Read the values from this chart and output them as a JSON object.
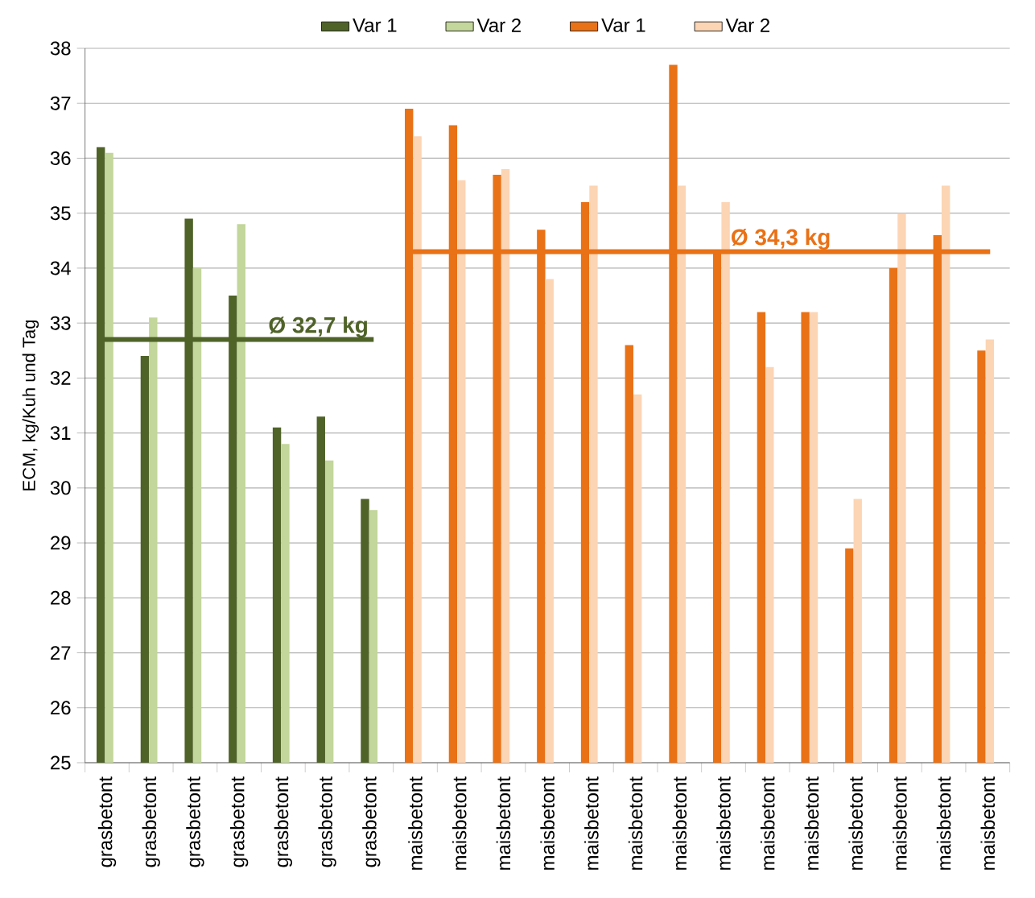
{
  "chart_data": {
    "type": "bar",
    "ylabel": "ECM, kg/Kuh und Tag",
    "categories": [
      "grasbetont",
      "grasbetont",
      "grasbetont",
      "grasbetont",
      "grasbetont",
      "grasbetont",
      "grasbetont",
      "maisbetont",
      "maisbetont",
      "maisbetont",
      "maisbetont",
      "maisbetont",
      "maisbetont",
      "maisbetont",
      "maisbetont",
      "maisbetont",
      "maisbetont",
      "maisbetont",
      "maisbetont",
      "maisbetont",
      "maisbetont"
    ],
    "series": [
      {
        "name": "Var 1",
        "color": "#4f6228",
        "values": [
          36.2,
          32.4,
          34.9,
          33.5,
          31.1,
          31.3,
          29.8,
          null,
          null,
          null,
          null,
          null,
          null,
          null,
          null,
          null,
          null,
          null,
          null,
          null,
          null
        ]
      },
      {
        "name": "Var 2",
        "color": "#c3d69b",
        "values": [
          36.1,
          33.1,
          34.0,
          34.8,
          30.8,
          30.5,
          29.6,
          null,
          null,
          null,
          null,
          null,
          null,
          null,
          null,
          null,
          null,
          null,
          null,
          null,
          null
        ]
      },
      {
        "name": "Var 1",
        "color": "#e97116",
        "values": [
          null,
          null,
          null,
          null,
          null,
          null,
          null,
          36.9,
          36.6,
          35.7,
          34.7,
          35.2,
          32.6,
          37.7,
          34.3,
          33.2,
          33.2,
          28.9,
          34.0,
          34.6,
          32.5
        ]
      },
      {
        "name": "Var 2",
        "color": "#fcd5b5",
        "values": [
          null,
          null,
          null,
          null,
          null,
          null,
          null,
          36.4,
          35.6,
          35.8,
          33.8,
          35.5,
          31.7,
          35.5,
          35.2,
          32.2,
          33.2,
          29.8,
          35.0,
          35.5,
          32.7
        ]
      },
      {
        "name": "Ø 32,7 kg",
        "type": "line",
        "color": "#4f6228",
        "values": [
          32.7,
          32.7,
          32.7,
          32.7,
          32.7,
          32.7,
          32.7,
          null,
          null,
          null,
          null,
          null,
          null,
          null,
          null,
          null,
          null,
          null,
          null,
          null,
          null
        ]
      },
      {
        "name": "Ø 34,3 kg",
        "type": "line",
        "color": "#e97116",
        "values": [
          null,
          null,
          null,
          null,
          null,
          null,
          null,
          34.3,
          34.3,
          34.3,
          34.3,
          34.3,
          34.3,
          34.3,
          34.3,
          34.3,
          34.3,
          34.3,
          34.3,
          34.3,
          34.3
        ]
      }
    ],
    "ylim": [
      25,
      38
    ],
    "yticks": [
      25,
      26,
      27,
      28,
      29,
      30,
      31,
      32,
      33,
      34,
      35,
      36,
      37,
      38
    ],
    "grid": "y",
    "legend": "top"
  }
}
